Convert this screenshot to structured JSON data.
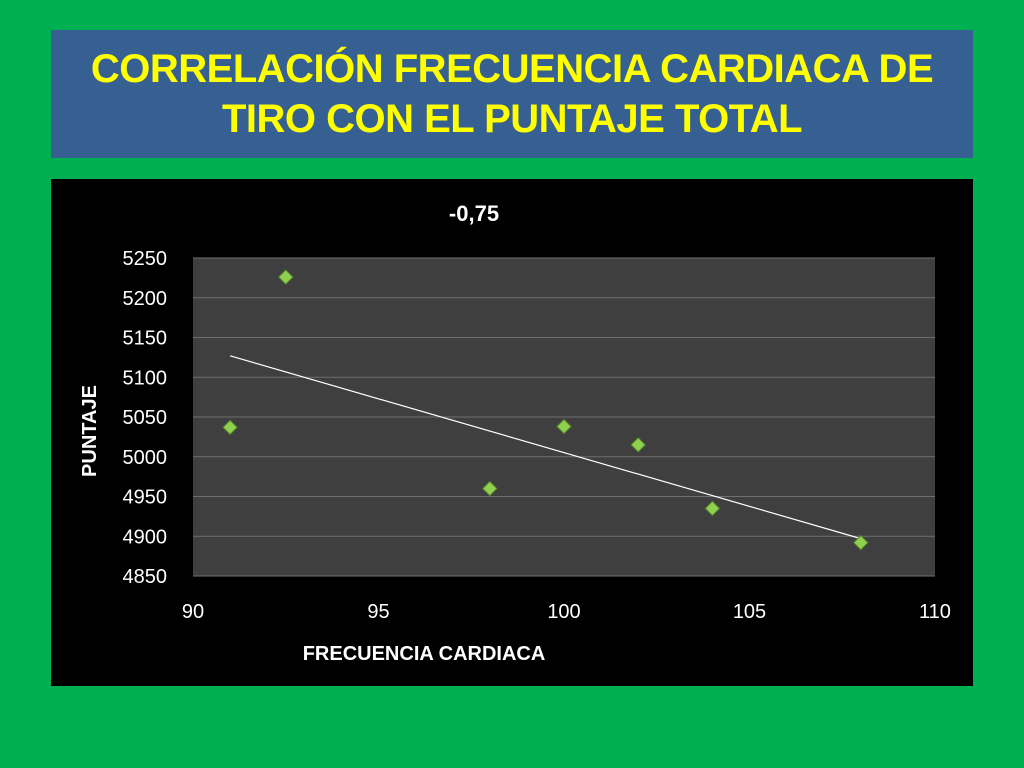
{
  "slide": {
    "title_line1": "CORRELACIÓN FRECUENCIA CARDIACA DE",
    "title_line2": "TIRO CON EL PUNTAJE TOTAL"
  },
  "colors": {
    "background": "#00b050",
    "title_box": "#366092",
    "title_text": "#ffff00",
    "chart_background": "#000000",
    "plot_area": "#3f3f3f",
    "gridline": "#6f6f6f",
    "marker": "#8fd14f",
    "trendline": "#ffffff",
    "text": "#ffffff"
  },
  "chart_data": {
    "type": "scatter",
    "title": "-0,75",
    "xlabel": "FRECUENCIA CARDIACA",
    "ylabel": "PUNTAJE",
    "xlim": [
      90,
      110
    ],
    "ylim": [
      4850,
      5250
    ],
    "x_ticks": [
      "90",
      "95",
      "100",
      "105",
      "110"
    ],
    "y_ticks": [
      "4850",
      "4900",
      "4950",
      "5000",
      "5050",
      "5100",
      "5150",
      "5200",
      "5250"
    ],
    "grid": "horizontal",
    "legend": "none",
    "series": [
      {
        "x": [
          91,
          92.5,
          98,
          100,
          102,
          104,
          108
        ],
        "y": [
          5037,
          5226,
          4960,
          5038,
          5015,
          4935,
          4892
        ]
      }
    ],
    "trendline": {
      "type": "linear",
      "x": [
        91,
        108
      ],
      "y": [
        5127,
        4897
      ]
    }
  }
}
